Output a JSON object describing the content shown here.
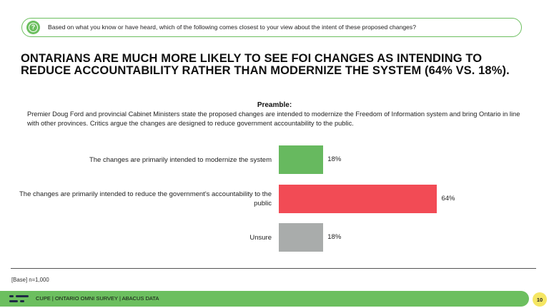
{
  "question": {
    "icon": "question-icon",
    "text": "Based on what you know or have heard, which of the following comes closest to your view about the intent of these proposed changes?"
  },
  "headline": "ONTARIANS ARE MUCH MORE LIKELY TO SEE FOI CHANGES AS INTENDING TO REDUCE ACCOUNTABILITY RATHER THAN MODERNIZE THE SYSTEM (64% VS. 18%).",
  "preamble": {
    "title": "Preamble:",
    "text": "Premier Doug Ford and provincial Cabinet Ministers state the proposed changes are intended to modernize the Freedom of Information system and bring Ontario in line with other provinces. Critics argue the changes are designed to reduce government accountability to the public."
  },
  "chart_data": {
    "type": "bar",
    "orientation": "horizontal",
    "categories": [
      "The changes are primarily intended to modernize the system",
      "The changes are primarily intended to reduce the government's accountability to the public",
      "Unsure"
    ],
    "values": [
      18,
      64,
      18
    ],
    "value_labels": [
      "18%",
      "64%",
      "18%"
    ],
    "colors": [
      "#67b95f",
      "#f24b55",
      "#a9acab"
    ],
    "xlim": [
      0,
      100
    ],
    "title": "",
    "xlabel": "",
    "ylabel": ""
  },
  "base_note": "[Base] n=1,000",
  "footer": {
    "text": "CUPE | ONTARIO OMNI SURVEY | ABACUS DATA",
    "page_number": "10",
    "logo_icon": "abacus-logo-icon"
  }
}
